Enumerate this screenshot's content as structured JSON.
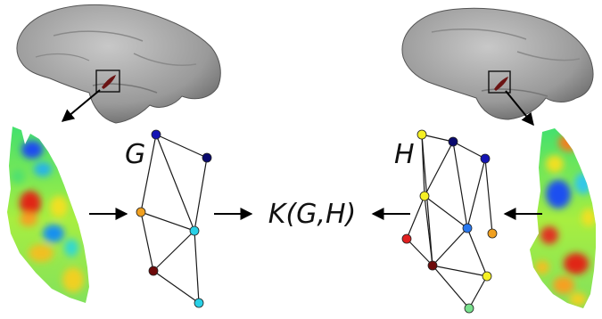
{
  "diagram": {
    "graph_left_label": "G",
    "graph_right_label": "H",
    "kernel_label": "K(G,H)",
    "colors": {
      "brain_fill": "#9d9d9d",
      "roi_fill": "#6b1414",
      "node_dark_blue": "#1414b4",
      "node_navy": "#0a0a6e",
      "node_orange": "#f0a020",
      "node_cyan": "#29d0e6",
      "node_dark_red": "#6e0b0b",
      "node_yellow": "#f5f024",
      "node_red": "#e02020",
      "node_blue": "#2878f0",
      "node_light_green": "#78e08c"
    }
  }
}
